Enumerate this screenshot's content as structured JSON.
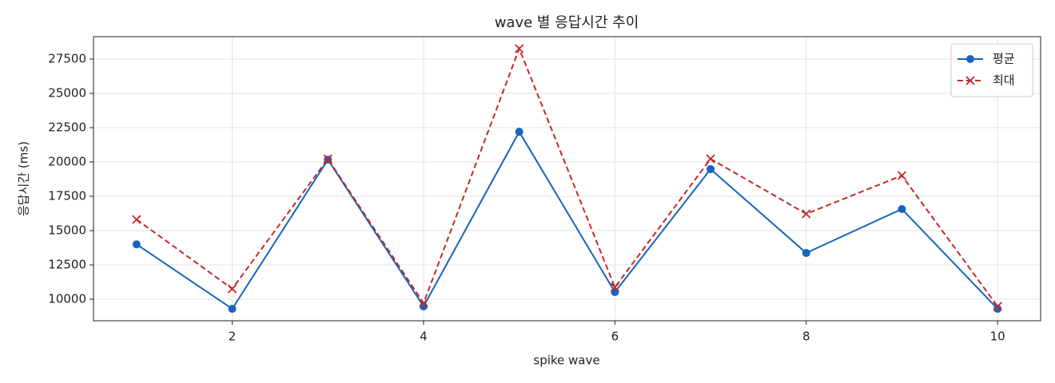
{
  "chart_data": {
    "type": "line",
    "title": "wave 별 응답시간 추이",
    "x_label": "spike wave",
    "y_label": "응답시간 (ms)",
    "x": [
      1,
      2,
      3,
      4,
      5,
      6,
      7,
      8,
      9,
      10
    ],
    "series": [
      {
        "name": "평균",
        "color": "#1565c0",
        "marker": "o",
        "dash": "solid",
        "values": [
          14000,
          9300,
          20170,
          9480,
          22200,
          10520,
          19480,
          13370,
          16570,
          9300
        ]
      },
      {
        "name": "최대",
        "color": "#c62828",
        "marker": "x",
        "dash": "dashed",
        "values": [
          15810,
          10760,
          20230,
          9710,
          28260,
          10870,
          20230,
          16220,
          19010,
          9480
        ]
      }
    ],
    "xlim": [
      0.55,
      10.45
    ],
    "ylim": [
      8430,
      29130
    ],
    "xticks": [
      2,
      4,
      6,
      8,
      10
    ],
    "yticks": [
      10000,
      12500,
      15000,
      17500,
      20000,
      22500,
      25000,
      27500
    ],
    "grid": true,
    "legend": "upper right"
  }
}
